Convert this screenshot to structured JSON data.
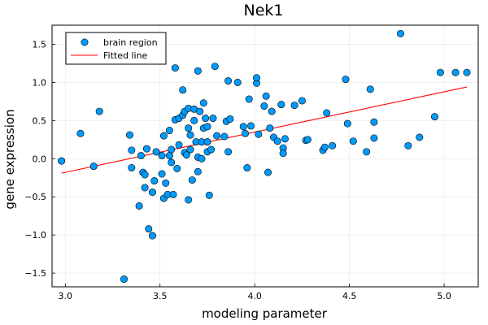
{
  "chart_data": {
    "type": "scatter",
    "title": "Nek1",
    "xlabel": "modeling parameter",
    "ylabel": "gene expression",
    "xlim": [
      2.93,
      5.18
    ],
    "ylim": [
      -1.68,
      1.75
    ],
    "xticks": [
      3.0,
      3.5,
      4.0,
      4.5,
      5.0
    ],
    "xtick_labels": [
      "3.0",
      "3.5",
      "4.0",
      "4.5",
      "5.0"
    ],
    "yticks": [
      -1.5,
      -1.0,
      -0.5,
      0.0,
      0.5,
      1.0,
      1.5
    ],
    "ytick_labels": [
      "−1.5",
      "−1.0",
      "−0.5",
      "0.0",
      "0.5",
      "1.0",
      "1.5"
    ],
    "grid": true,
    "legend_position": "top-left",
    "series": [
      {
        "name": "brain region",
        "kind": "scatter",
        "color": "#009AFA",
        "points": [
          [
            2.98,
            -0.03
          ],
          [
            3.08,
            0.33
          ],
          [
            3.15,
            -0.1
          ],
          [
            3.18,
            0.62
          ],
          [
            3.31,
            -1.58
          ],
          [
            3.34,
            0.31
          ],
          [
            3.35,
            0.11
          ],
          [
            3.35,
            -0.12
          ],
          [
            3.39,
            -0.62
          ],
          [
            3.4,
            0.04
          ],
          [
            3.41,
            -0.18
          ],
          [
            3.42,
            -0.38
          ],
          [
            3.42,
            -0.21
          ],
          [
            3.43,
            0.13
          ],
          [
            3.44,
            -0.92
          ],
          [
            3.46,
            -0.44
          ],
          [
            3.46,
            -1.01
          ],
          [
            3.47,
            -0.29
          ],
          [
            3.48,
            0.09
          ],
          [
            3.51,
            0.04
          ],
          [
            3.51,
            -0.2
          ],
          [
            3.52,
            -0.52
          ],
          [
            3.52,
            0.3
          ],
          [
            3.53,
            -0.32
          ],
          [
            3.54,
            -0.47
          ],
          [
            3.55,
            0.04
          ],
          [
            3.55,
            0.37
          ],
          [
            3.56,
            0.12
          ],
          [
            3.56,
            -0.05
          ],
          [
            3.57,
            -0.47
          ],
          [
            3.58,
            0.51
          ],
          [
            3.58,
            1.19
          ],
          [
            3.59,
            -0.13
          ],
          [
            3.6,
            0.18
          ],
          [
            3.6,
            0.53
          ],
          [
            3.62,
            0.57
          ],
          [
            3.62,
            0.9
          ],
          [
            3.63,
            0.08
          ],
          [
            3.63,
            0.62
          ],
          [
            3.64,
            0.05
          ],
          [
            3.65,
            -0.54
          ],
          [
            3.65,
            0.66
          ],
          [
            3.65,
            0.4
          ],
          [
            3.66,
            0.31
          ],
          [
            3.66,
            0.12
          ],
          [
            3.67,
            -0.28
          ],
          [
            3.68,
            0.65
          ],
          [
            3.68,
            0.5
          ],
          [
            3.69,
            0.22
          ],
          [
            3.7,
            1.15
          ],
          [
            3.7,
            0.02
          ],
          [
            3.7,
            -0.17
          ],
          [
            3.71,
            0.62
          ],
          [
            3.72,
            0.0
          ],
          [
            3.72,
            0.22
          ],
          [
            3.73,
            0.4
          ],
          [
            3.73,
            0.73
          ],
          [
            3.74,
            0.53
          ],
          [
            3.75,
            0.09
          ],
          [
            3.75,
            0.42
          ],
          [
            3.75,
            0.22
          ],
          [
            3.76,
            -0.48
          ],
          [
            3.77,
            0.12
          ],
          [
            3.78,
            0.53
          ],
          [
            3.79,
            1.21
          ],
          [
            3.8,
            0.3
          ],
          [
            3.84,
            0.29
          ],
          [
            3.85,
            0.49
          ],
          [
            3.86,
            1.02
          ],
          [
            3.86,
            0.09
          ],
          [
            3.87,
            0.52
          ],
          [
            3.91,
            1.0
          ],
          [
            3.94,
            0.42
          ],
          [
            3.95,
            0.33
          ],
          [
            3.96,
            -0.12
          ],
          [
            3.97,
            0.78
          ],
          [
            3.98,
            0.43
          ],
          [
            4.01,
            0.99
          ],
          [
            4.01,
            1.06
          ],
          [
            4.02,
            0.32
          ],
          [
            4.05,
            0.69
          ],
          [
            4.06,
            0.82
          ],
          [
            4.07,
            -0.18
          ],
          [
            4.08,
            0.4
          ],
          [
            4.09,
            0.62
          ],
          [
            4.1,
            0.28
          ],
          [
            4.12,
            0.23
          ],
          [
            4.14,
            0.71
          ],
          [
            4.15,
            0.14
          ],
          [
            4.15,
            0.07
          ],
          [
            4.16,
            0.26
          ],
          [
            4.21,
            0.7
          ],
          [
            4.25,
            0.76
          ],
          [
            4.27,
            0.24
          ],
          [
            4.28,
            0.25
          ],
          [
            4.36,
            0.11
          ],
          [
            4.37,
            0.15
          ],
          [
            4.38,
            0.6
          ],
          [
            4.41,
            0.17
          ],
          [
            4.48,
            1.04
          ],
          [
            4.49,
            0.46
          ],
          [
            4.52,
            0.23
          ],
          [
            4.59,
            0.09
          ],
          [
            4.61,
            0.91
          ],
          [
            4.63,
            0.48
          ],
          [
            4.63,
            0.27
          ],
          [
            4.77,
            1.64
          ],
          [
            4.81,
            0.17
          ],
          [
            4.87,
            0.28
          ],
          [
            4.95,
            0.55
          ],
          [
            4.98,
            1.13
          ],
          [
            5.06,
            1.13
          ],
          [
            5.12,
            1.13
          ]
        ]
      },
      {
        "name": "Fitted line",
        "kind": "line",
        "color": "#FF0000",
        "x": [
          2.98,
          5.12
        ],
        "y": [
          -0.19,
          0.94
        ]
      }
    ]
  }
}
